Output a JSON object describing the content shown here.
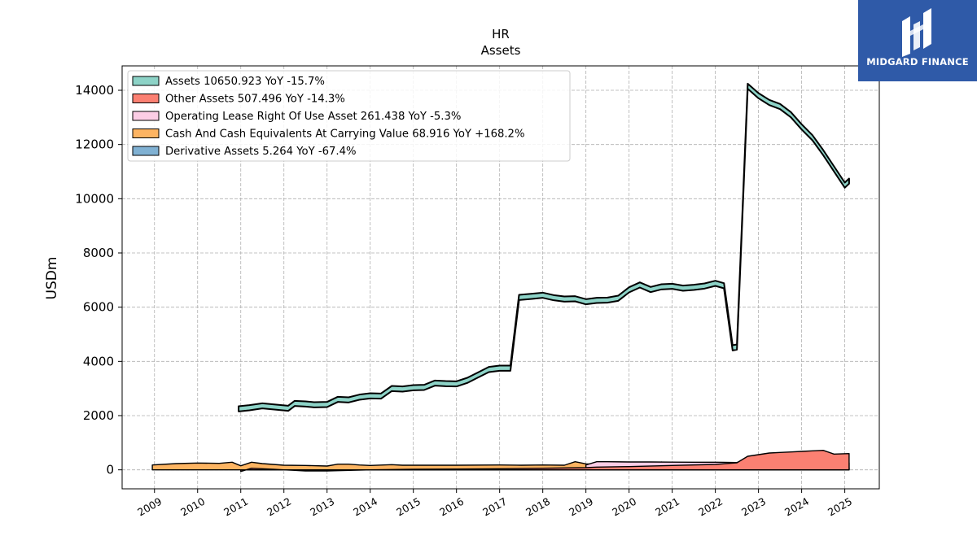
{
  "chart_data": {
    "type": "area",
    "title": "HR",
    "subtitle": "Assets",
    "xlabel": "",
    "ylabel": "USDm",
    "xlim": [
      2008.25,
      2025.8
    ],
    "ylim": [
      -700,
      14900
    ],
    "grid": true,
    "legend_position": "top-left",
    "x_ticks": [
      "2009",
      "2010",
      "2011",
      "2012",
      "2013",
      "2014",
      "2015",
      "2016",
      "2017",
      "2018",
      "2019",
      "2020",
      "2021",
      "2022",
      "2023",
      "2024",
      "2025"
    ],
    "y_ticks": [
      0,
      2000,
      4000,
      6000,
      8000,
      10000,
      12000,
      14000
    ],
    "series": [
      {
        "name": "Assets",
        "legend": "Assets  10650.923 YoY -15.7%",
        "color": "#8dd3c7",
        "points": [
          [
            2010.95,
            2250
          ],
          [
            2011.2,
            2290
          ],
          [
            2011.5,
            2360
          ],
          [
            2011.7,
            2330
          ],
          [
            2012.1,
            2270
          ],
          [
            2012.25,
            2450
          ],
          [
            2012.5,
            2430
          ],
          [
            2012.7,
            2400
          ],
          [
            2013.0,
            2410
          ],
          [
            2013.25,
            2600
          ],
          [
            2013.5,
            2580
          ],
          [
            2013.75,
            2680
          ],
          [
            2014.0,
            2730
          ],
          [
            2014.25,
            2720
          ],
          [
            2014.5,
            3000
          ],
          [
            2014.75,
            2980
          ],
          [
            2015.0,
            3030
          ],
          [
            2015.25,
            3040
          ],
          [
            2015.5,
            3200
          ],
          [
            2015.75,
            3180
          ],
          [
            2016.0,
            3170
          ],
          [
            2016.25,
            3300
          ],
          [
            2016.5,
            3500
          ],
          [
            2016.75,
            3700
          ],
          [
            2017.0,
            3750
          ],
          [
            2017.25,
            3750
          ],
          [
            2017.45,
            6360
          ],
          [
            2017.75,
            6400
          ],
          [
            2018.0,
            6440
          ],
          [
            2018.25,
            6350
          ],
          [
            2018.5,
            6300
          ],
          [
            2018.75,
            6310
          ],
          [
            2019.0,
            6200
          ],
          [
            2019.25,
            6250
          ],
          [
            2019.5,
            6260
          ],
          [
            2019.75,
            6330
          ],
          [
            2020.0,
            6640
          ],
          [
            2020.25,
            6820
          ],
          [
            2020.5,
            6650
          ],
          [
            2020.75,
            6750
          ],
          [
            2021.0,
            6770
          ],
          [
            2021.25,
            6700
          ],
          [
            2021.5,
            6730
          ],
          [
            2021.75,
            6780
          ],
          [
            2022.0,
            6880
          ],
          [
            2022.2,
            6790
          ],
          [
            2022.4,
            4500
          ],
          [
            2022.5,
            4530
          ],
          [
            2022.75,
            14150
          ],
          [
            2023.0,
            13800
          ],
          [
            2023.25,
            13550
          ],
          [
            2023.5,
            13400
          ],
          [
            2023.75,
            13100
          ],
          [
            2024.0,
            12650
          ],
          [
            2024.25,
            12250
          ],
          [
            2024.5,
            11700
          ],
          [
            2024.75,
            11100
          ],
          [
            2025.0,
            10500
          ],
          [
            2025.1,
            10650
          ]
        ]
      },
      {
        "name": "Other Assets",
        "legend": "Other Assets  507.496 YoY -14.3%",
        "color": "#fb8072",
        "points": [
          [
            2011.0,
            -60
          ],
          [
            2011.25,
            60
          ],
          [
            2011.5,
            40
          ],
          [
            2011.75,
            20
          ],
          [
            2012.0,
            0
          ],
          [
            2012.25,
            -20
          ],
          [
            2012.5,
            -40
          ],
          [
            2012.75,
            -40
          ],
          [
            2013.0,
            -40
          ],
          [
            2013.25,
            -30
          ],
          [
            2014.0,
            0
          ],
          [
            2015.0,
            20
          ],
          [
            2016.0,
            30
          ],
          [
            2017.0,
            40
          ],
          [
            2018.0,
            60
          ],
          [
            2019.0,
            80
          ],
          [
            2019.25,
            100
          ],
          [
            2020.0,
            120
          ],
          [
            2021.0,
            160
          ],
          [
            2022.0,
            200
          ],
          [
            2022.5,
            260
          ],
          [
            2022.75,
            500
          ],
          [
            2023.0,
            560
          ],
          [
            2023.25,
            620
          ],
          [
            2023.5,
            640
          ],
          [
            2023.75,
            660
          ],
          [
            2024.0,
            680
          ],
          [
            2024.25,
            700
          ],
          [
            2024.5,
            720
          ],
          [
            2024.75,
            580
          ],
          [
            2025.1,
            600
          ]
        ]
      },
      {
        "name": "Operating Lease Right Of Use Asset",
        "legend": "Operating Lease Right Of Use Asset  261.438 YoY -5.3%",
        "color": "#fccde5",
        "points": [
          [
            2019.0,
            180
          ],
          [
            2019.25,
            300
          ],
          [
            2019.5,
            300
          ],
          [
            2020.0,
            290
          ],
          [
            2020.5,
            290
          ],
          [
            2021.0,
            285
          ],
          [
            2021.5,
            280
          ],
          [
            2022.0,
            280
          ],
          [
            2022.5,
            270
          ],
          [
            2022.75,
            400
          ],
          [
            2023.0,
            420
          ],
          [
            2023.5,
            430
          ],
          [
            2023.75,
            420
          ],
          [
            2024.0,
            380
          ],
          [
            2024.5,
            300
          ],
          [
            2024.75,
            280
          ],
          [
            2025.1,
            261
          ]
        ]
      },
      {
        "name": "Cash And Cash Equivalents At Carrying Value",
        "legend": "Cash And Cash Equivalents At Carrying Value  68.916 YoY +168.2%",
        "color": "#fdb462",
        "points": [
          [
            2008.95,
            180
          ],
          [
            2009.5,
            230
          ],
          [
            2010.0,
            250
          ],
          [
            2010.5,
            240
          ],
          [
            2010.8,
            280
          ],
          [
            2011.0,
            150
          ],
          [
            2011.25,
            280
          ],
          [
            2011.5,
            230
          ],
          [
            2011.75,
            200
          ],
          [
            2012.0,
            170
          ],
          [
            2012.5,
            160
          ],
          [
            2013.0,
            140
          ],
          [
            2013.25,
            210
          ],
          [
            2013.5,
            210
          ],
          [
            2013.75,
            180
          ],
          [
            2014.0,
            160
          ],
          [
            2014.5,
            190
          ],
          [
            2014.75,
            170
          ],
          [
            2015.0,
            170
          ],
          [
            2016.0,
            170
          ],
          [
            2017.0,
            180
          ],
          [
            2017.5,
            170
          ],
          [
            2018.0,
            180
          ],
          [
            2018.5,
            170
          ],
          [
            2018.75,
            300
          ],
          [
            2019.0,
            220
          ],
          [
            2019.25,
            200
          ],
          [
            2019.5,
            160
          ],
          [
            2019.75,
            140
          ],
          [
            2020.0,
            160
          ],
          [
            2020.25,
            280
          ],
          [
            2020.5,
            160
          ],
          [
            2020.75,
            290
          ],
          [
            2021.0,
            180
          ],
          [
            2021.25,
            130
          ],
          [
            2021.5,
            120
          ],
          [
            2021.75,
            140
          ],
          [
            2022.0,
            130
          ],
          [
            2022.25,
            150
          ],
          [
            2022.5,
            140
          ],
          [
            2022.75,
            150
          ],
          [
            2023.0,
            160
          ],
          [
            2023.5,
            160
          ],
          [
            2024.0,
            140
          ],
          [
            2024.5,
            100
          ],
          [
            2024.75,
            60
          ],
          [
            2025.1,
            69
          ]
        ]
      },
      {
        "name": "Derivative Assets",
        "legend": "Derivative Assets  5.264 YoY -67.4%",
        "color": "#80b1d3",
        "points": [
          [
            2012.95,
            5
          ],
          [
            2013.0,
            25
          ],
          [
            2014.0,
            25
          ],
          [
            2015.0,
            25
          ],
          [
            2016.0,
            25
          ],
          [
            2017.0,
            25
          ],
          [
            2018.0,
            25
          ],
          [
            2019.0,
            20
          ],
          [
            2020.0,
            20
          ],
          [
            2021.0,
            20
          ],
          [
            2022.0,
            20
          ],
          [
            2023.0,
            15
          ],
          [
            2024.0,
            10
          ],
          [
            2025.1,
            5
          ]
        ]
      }
    ]
  },
  "logo": {
    "text": "MIDGARD FINANCE",
    "color": "#2f5aa8"
  }
}
